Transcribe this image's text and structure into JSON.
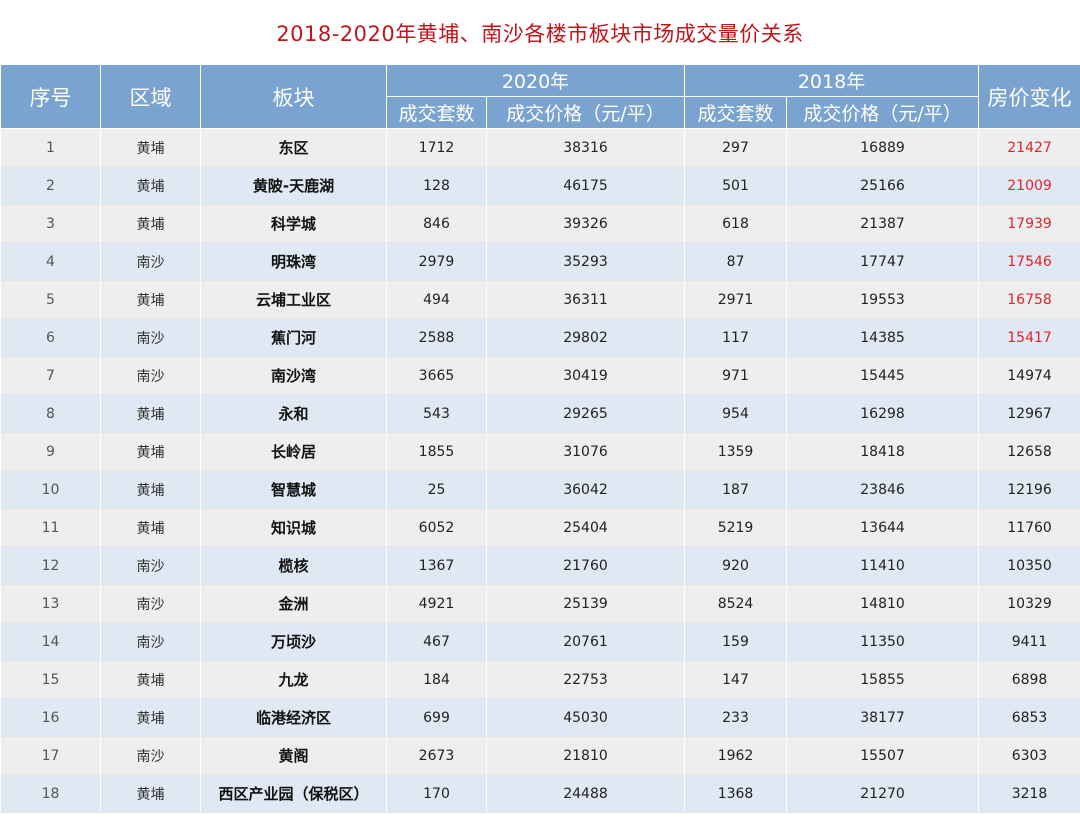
{
  "title": "2018-2020年黄埔、南沙各楼市板块市场成交量价关系",
  "headers": {
    "index": "序号",
    "area": "区域",
    "block": "板块",
    "year2020": "2020年",
    "year2018": "2018年",
    "volume": "成交套数",
    "price": "成交价格（元/平）",
    "change": "房价变化"
  },
  "highlight_color": "#e0242a",
  "rows": [
    {
      "index": "1",
      "area": "黄埔",
      "block": "东区",
      "v2020": "1712",
      "p2020": "38316",
      "v2018": "297",
      "p2018": "16889",
      "change": "21427",
      "highlight": true
    },
    {
      "index": "2",
      "area": "黄埔",
      "block": "黄陂-天鹿湖",
      "v2020": "128",
      "p2020": "46175",
      "v2018": "501",
      "p2018": "25166",
      "change": "21009",
      "highlight": true
    },
    {
      "index": "3",
      "area": "黄埔",
      "block": "科学城",
      "v2020": "846",
      "p2020": "39326",
      "v2018": "618",
      "p2018": "21387",
      "change": "17939",
      "highlight": true
    },
    {
      "index": "4",
      "area": "南沙",
      "block": "明珠湾",
      "v2020": "2979",
      "p2020": "35293",
      "v2018": "87",
      "p2018": "17747",
      "change": "17546",
      "highlight": true
    },
    {
      "index": "5",
      "area": "黄埔",
      "block": "云埔工业区",
      "v2020": "494",
      "p2020": "36311",
      "v2018": "2971",
      "p2018": "19553",
      "change": "16758",
      "highlight": true
    },
    {
      "index": "6",
      "area": "南沙",
      "block": "蕉门河",
      "v2020": "2588",
      "p2020": "29802",
      "v2018": "117",
      "p2018": "14385",
      "change": "15417",
      "highlight": true
    },
    {
      "index": "7",
      "area": "南沙",
      "block": "南沙湾",
      "v2020": "3665",
      "p2020": "30419",
      "v2018": "971",
      "p2018": "15445",
      "change": "14974",
      "highlight": false
    },
    {
      "index": "8",
      "area": "黄埔",
      "block": "永和",
      "v2020": "543",
      "p2020": "29265",
      "v2018": "954",
      "p2018": "16298",
      "change": "12967",
      "highlight": false
    },
    {
      "index": "9",
      "area": "黄埔",
      "block": "长岭居",
      "v2020": "1855",
      "p2020": "31076",
      "v2018": "1359",
      "p2018": "18418",
      "change": "12658",
      "highlight": false
    },
    {
      "index": "10",
      "area": "黄埔",
      "block": "智慧城",
      "v2020": "25",
      "p2020": "36042",
      "v2018": "187",
      "p2018": "23846",
      "change": "12196",
      "highlight": false
    },
    {
      "index": "11",
      "area": "黄埔",
      "block": "知识城",
      "v2020": "6052",
      "p2020": "25404",
      "v2018": "5219",
      "p2018": "13644",
      "change": "11760",
      "highlight": false
    },
    {
      "index": "12",
      "area": "南沙",
      "block": "榄核",
      "v2020": "1367",
      "p2020": "21760",
      "v2018": "920",
      "p2018": "11410",
      "change": "10350",
      "highlight": false
    },
    {
      "index": "13",
      "area": "南沙",
      "block": "金洲",
      "v2020": "4921",
      "p2020": "25139",
      "v2018": "8524",
      "p2018": "14810",
      "change": "10329",
      "highlight": false
    },
    {
      "index": "14",
      "area": "南沙",
      "block": "万顷沙",
      "v2020": "467",
      "p2020": "20761",
      "v2018": "159",
      "p2018": "11350",
      "change": "9411",
      "highlight": false
    },
    {
      "index": "15",
      "area": "黄埔",
      "block": "九龙",
      "v2020": "184",
      "p2020": "22753",
      "v2018": "147",
      "p2018": "15855",
      "change": "6898",
      "highlight": false
    },
    {
      "index": "16",
      "area": "黄埔",
      "block": "临港经济区",
      "v2020": "699",
      "p2020": "45030",
      "v2018": "233",
      "p2018": "38177",
      "change": "6853",
      "highlight": false
    },
    {
      "index": "17",
      "area": "南沙",
      "block": "黄阁",
      "v2020": "2673",
      "p2020": "21810",
      "v2018": "1962",
      "p2018": "15507",
      "change": "6303",
      "highlight": false
    },
    {
      "index": "18",
      "area": "黄埔",
      "block": "西区产业园（保税区）",
      "v2020": "170",
      "p2020": "24488",
      "v2018": "1368",
      "p2018": "21270",
      "change": "3218",
      "highlight": false
    }
  ]
}
